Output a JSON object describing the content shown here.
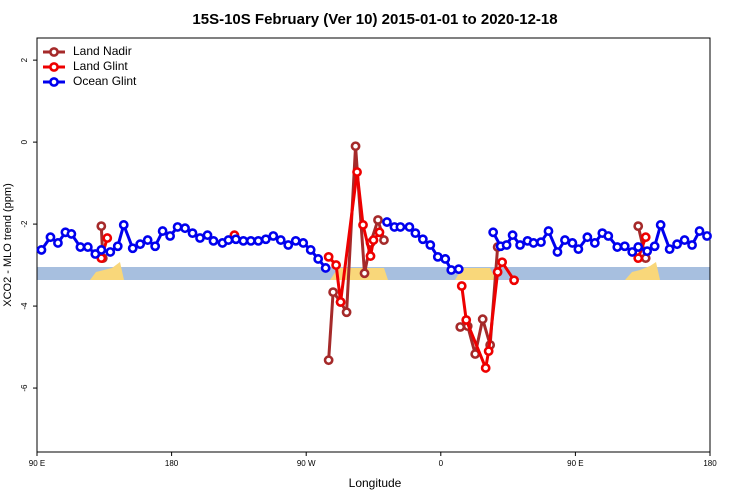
{
  "chart_data": {
    "type": "line",
    "title": "15S-10S February (Ver 10)   2015-01-01 to 2020-12-18",
    "x_label": "Longitude",
    "y_label": "XCO2 - MLO trend (ppm)",
    "xlim": [
      90,
      540
    ],
    "ylim": [
      -7.56,
      2.54
    ],
    "xticks": [
      {
        "value": 90,
        "label": "90 E"
      },
      180,
      {
        "value": 270,
        "label": "90 W"
      },
      {
        "value": 360,
        "label": "0"
      },
      {
        "value": 450,
        "label": "90 E"
      },
      {
        "value": 540,
        "label": "180"
      }
    ],
    "yticks": [
      2,
      0,
      -2,
      -4,
      -6
    ],
    "legend": "top-left",
    "series": [
      {
        "name": "Land Nadir",
        "color": "#a52a2a",
        "x": [
          133,
          134,
          200,
          285,
          288,
          293,
          297,
          303,
          309,
          313,
          318,
          322,
          350,
          373,
          378,
          383,
          388,
          393,
          398,
          450,
          492,
          497
        ],
        "values": [
          -2.05,
          -2.83,
          null,
          -5.32,
          -3.66,
          -3.9,
          -4.15,
          -0.1,
          -3.2,
          -2.46,
          -1.9,
          -2.39,
          null,
          -4.51,
          -4.49,
          -5.17,
          -4.32,
          -4.95,
          -2.56,
          null,
          -2.05,
          -2.83
        ]
      },
      {
        "name": "Land Glint",
        "color": "#ee0000",
        "x": [
          133,
          137,
          180,
          222,
          250,
          285,
          290,
          293,
          304,
          308,
          313,
          315,
          319,
          350,
          374,
          377,
          390,
          392,
          398,
          401,
          409,
          450,
          492,
          497
        ],
        "values": [
          -2.83,
          -2.34,
          null,
          -2.27,
          null,
          -2.8,
          -3.0,
          -3.9,
          -0.73,
          -2.02,
          -2.78,
          -2.39,
          -2.2,
          null,
          -3.51,
          -4.34,
          -5.51,
          -5.1,
          -3.17,
          -2.93,
          -3.37,
          null,
          -2.83,
          -2.32
        ]
      },
      {
        "name": "Ocean Glint",
        "color": "#0000ee",
        "x": [
          93,
          99,
          104,
          109,
          113,
          119,
          124,
          129,
          133,
          139,
          144,
          148,
          154,
          159,
          164,
          169,
          174,
          179,
          184,
          189,
          194,
          199,
          204,
          208,
          214,
          218,
          223,
          228,
          233,
          238,
          243,
          248,
          253,
          258,
          263,
          268,
          273,
          278,
          283,
          300,
          324,
          329,
          333,
          339,
          343,
          348,
          353,
          358,
          363,
          367,
          372,
          385,
          395,
          400,
          404,
          408,
          413,
          418,
          422,
          427,
          432,
          438,
          443,
          448,
          452,
          458,
          463,
          468,
          472,
          478,
          483,
          488,
          492,
          498,
          503,
          507,
          513,
          518,
          523,
          528,
          533,
          538
        ],
        "values": [
          -2.63,
          -2.32,
          -2.46,
          -2.2,
          -2.24,
          -2.56,
          -2.56,
          -2.73,
          -2.63,
          -2.68,
          -2.54,
          -2.02,
          -2.59,
          -2.49,
          -2.39,
          -2.54,
          -2.17,
          -2.29,
          -2.07,
          -2.1,
          -2.22,
          -2.34,
          -2.27,
          -2.41,
          -2.46,
          -2.39,
          -2.37,
          -2.41,
          -2.41,
          -2.41,
          -2.37,
          -2.29,
          -2.39,
          -2.51,
          -2.41,
          -2.46,
          -2.63,
          -2.85,
          -3.07,
          null,
          -1.95,
          -2.07,
          -2.07,
          -2.07,
          -2.22,
          -2.37,
          -2.51,
          -2.8,
          -2.85,
          -3.12,
          -3.1,
          null,
          -2.2,
          -2.54,
          -2.51,
          -2.27,
          -2.51,
          -2.41,
          -2.46,
          -2.44,
          -2.17,
          -2.68,
          -2.39,
          -2.46,
          -2.61,
          -2.32,
          -2.46,
          -2.22,
          -2.29,
          -2.56,
          -2.54,
          -2.68,
          -2.56,
          -2.66,
          -2.54,
          -2.02,
          -2.61,
          -2.49,
          -2.39,
          -2.51,
          -2.17,
          -2.29
        ]
      }
    ]
  }
}
